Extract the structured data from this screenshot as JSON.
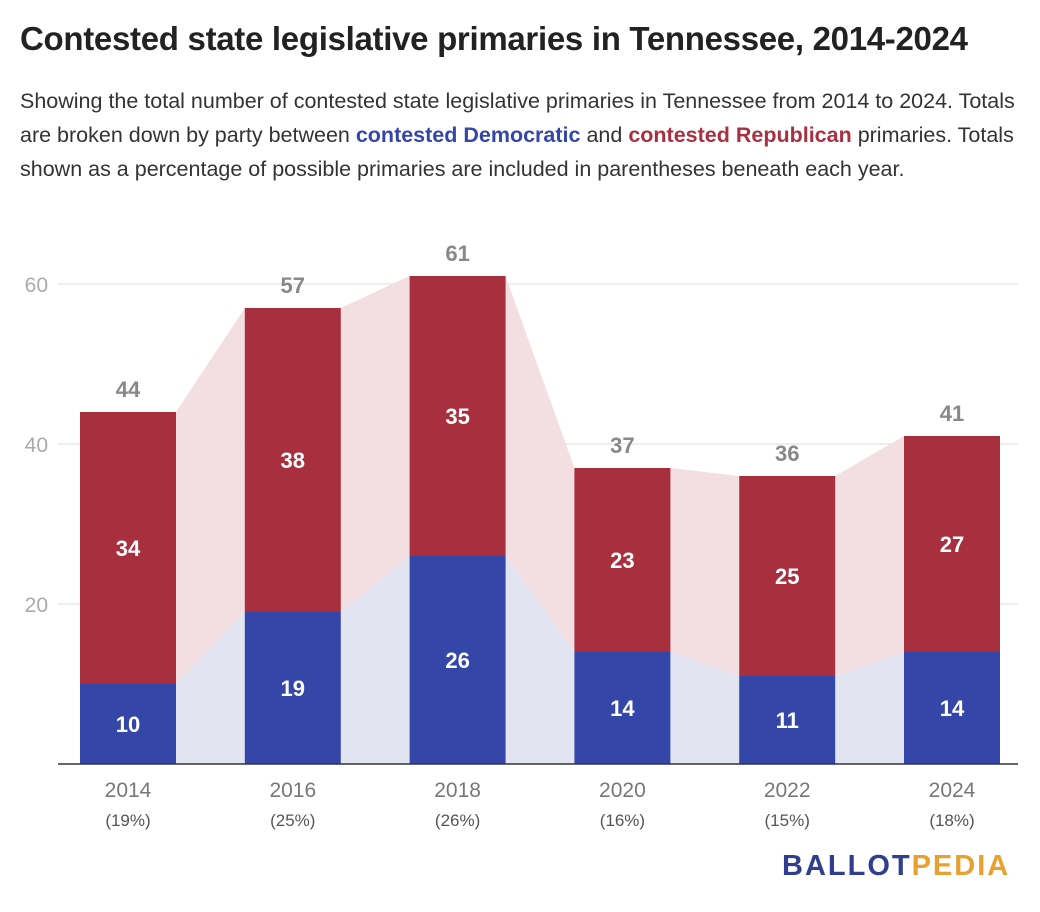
{
  "header": {
    "title": "Contested state legislative primaries in Tennessee, 2014-2024",
    "subtitle_parts": {
      "p1": "Showing the total number of contested state legislative primaries in Tennessee from 2014 to 2024. Totals are broken down by party between ",
      "dem": "contested Democratic",
      "p2": " and ",
      "rep": "contested Republican",
      "p3": " primaries. Totals shown as a percentage of possible primaries are included in parentheses beneath each year."
    }
  },
  "branding": {
    "part1": "BALLOT",
    "part2": "PEDIA",
    "color1": "#2f3e8f",
    "color2": "#e8a030"
  },
  "chart_data": {
    "type": "bar",
    "stacked": true,
    "categories": [
      "2014",
      "2016",
      "2018",
      "2020",
      "2022",
      "2024"
    ],
    "category_sublabels": [
      "(19%)",
      "(25%)",
      "(26%)",
      "(16%)",
      "(15%)",
      "(18%)"
    ],
    "series": [
      {
        "name": "contested Democratic",
        "values": [
          10,
          19,
          26,
          14,
          11,
          14
        ],
        "color": "#3446a8",
        "band_color": "#e2e4f2"
      },
      {
        "name": "contested Republican",
        "values": [
          34,
          38,
          35,
          23,
          25,
          27
        ],
        "color": "#a82f3e",
        "band_color": "#f3dfe1"
      }
    ],
    "totals": [
      44,
      57,
      61,
      37,
      36,
      41
    ],
    "ylim": [
      0,
      60
    ],
    "yticks": [
      20,
      40,
      60
    ],
    "grid": true,
    "title": "",
    "xlabel": "",
    "ylabel": ""
  }
}
